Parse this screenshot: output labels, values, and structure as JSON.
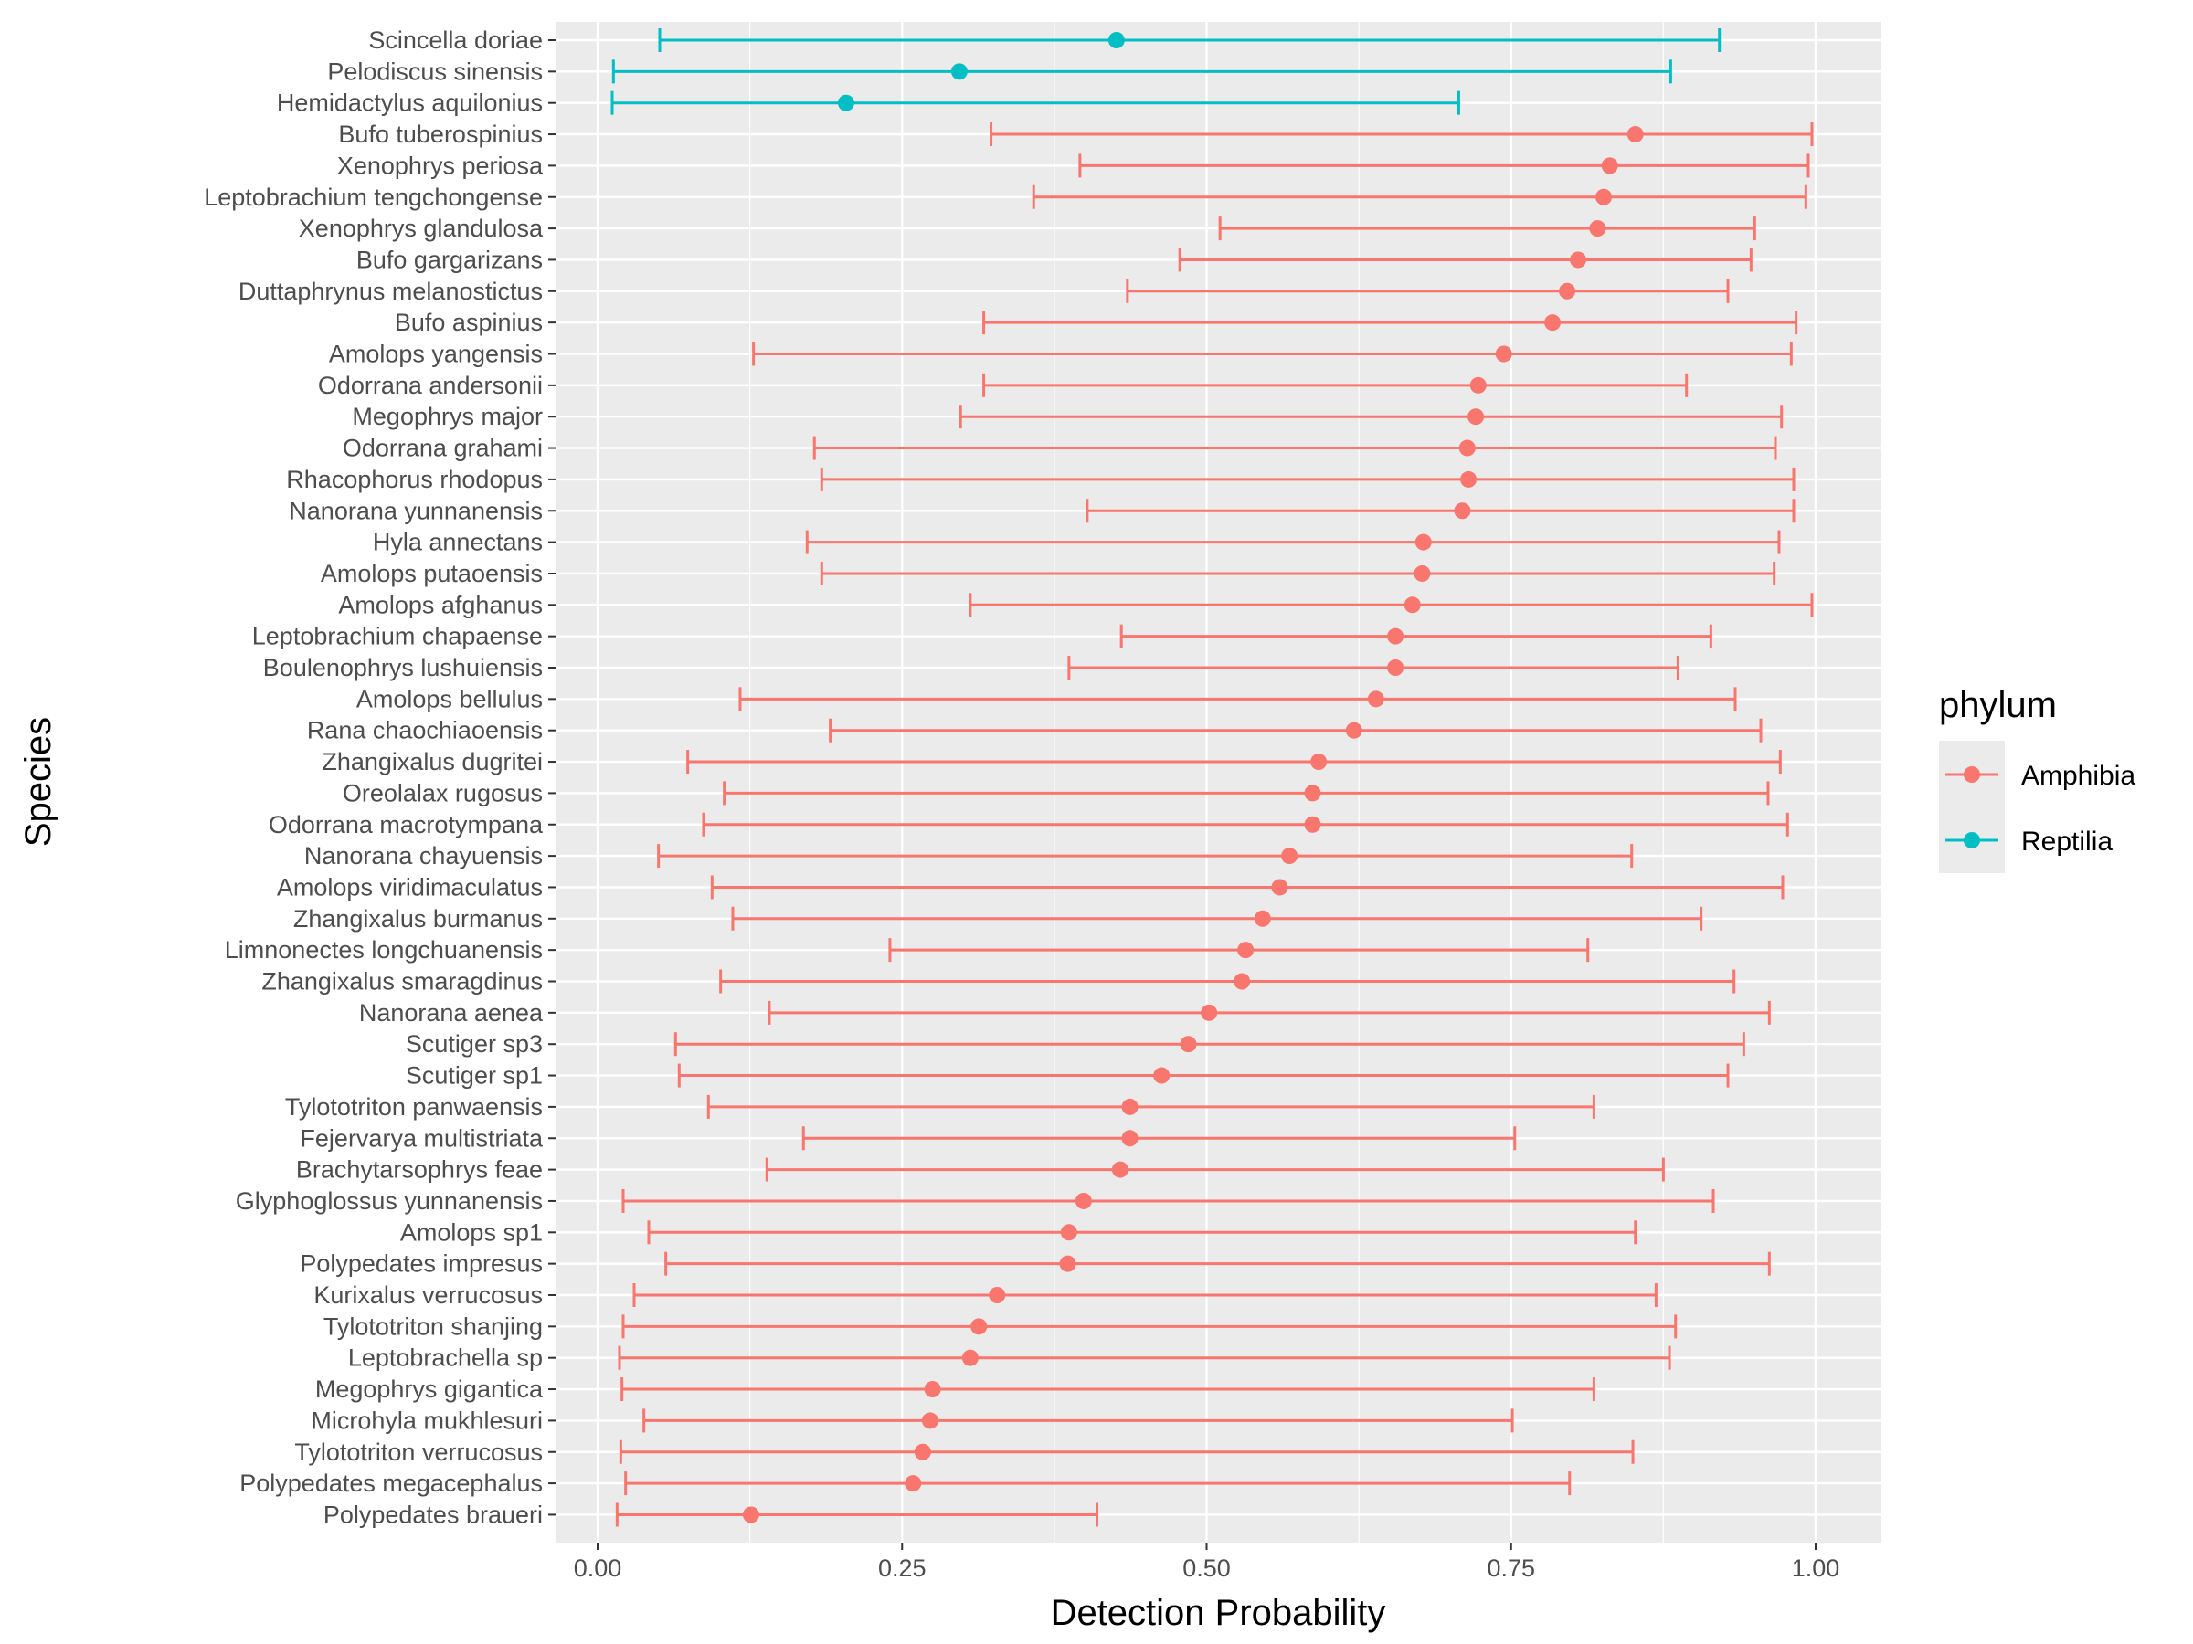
{
  "chart_data": {
    "type": "errorbar",
    "orientation": "horizontal",
    "xlabel": "Detection Probability",
    "ylabel": "Species",
    "xlim": [
      0,
      1
    ],
    "x_ticks": [
      "0.00",
      "0.25",
      "0.50",
      "0.75",
      "1.00"
    ],
    "grid": true,
    "legend": {
      "title": "phylum",
      "placement": "right",
      "entries": [
        {
          "label": "Amphibia",
          "color": "#F8766D"
        },
        {
          "label": "Reptilia",
          "color": "#00BFC4"
        }
      ]
    },
    "series": [
      {
        "species": "Scincella doriae",
        "phylum": "Reptilia",
        "estimate": 0.426,
        "lower": 0.051,
        "upper": 0.921
      },
      {
        "species": "Pelodiscus sinensis",
        "phylum": "Reptilia",
        "estimate": 0.297,
        "lower": 0.013,
        "upper": 0.881
      },
      {
        "species": "Hemidactylus aquilonius",
        "phylum": "Reptilia",
        "estimate": 0.204,
        "lower": 0.012,
        "upper": 0.707
      },
      {
        "species": "Bufo tuberospinius",
        "phylum": "Amphibia",
        "estimate": 0.852,
        "lower": 0.323,
        "upper": 0.997
      },
      {
        "species": "Xenophrys periosa",
        "phylum": "Amphibia",
        "estimate": 0.831,
        "lower": 0.396,
        "upper": 0.994
      },
      {
        "species": "Leptobrachium tengchongense",
        "phylum": "Amphibia",
        "estimate": 0.826,
        "lower": 0.358,
        "upper": 0.992
      },
      {
        "species": "Xenophrys glandulosa",
        "phylum": "Amphibia",
        "estimate": 0.821,
        "lower": 0.511,
        "upper": 0.95
      },
      {
        "species": "Bufo gargarizans",
        "phylum": "Amphibia",
        "estimate": 0.805,
        "lower": 0.478,
        "upper": 0.947
      },
      {
        "species": "Duttaphrynus melanostictus",
        "phylum": "Amphibia",
        "estimate": 0.796,
        "lower": 0.435,
        "upper": 0.928
      },
      {
        "species": "Bufo aspinius",
        "phylum": "Amphibia",
        "estimate": 0.784,
        "lower": 0.317,
        "upper": 0.984
      },
      {
        "species": "Amolops yangensis",
        "phylum": "Amphibia",
        "estimate": 0.744,
        "lower": 0.128,
        "upper": 0.98
      },
      {
        "species": "Odorrana andersonii",
        "phylum": "Amphibia",
        "estimate": 0.723,
        "lower": 0.317,
        "upper": 0.894
      },
      {
        "species": "Megophrys major",
        "phylum": "Amphibia",
        "estimate": 0.721,
        "lower": 0.298,
        "upper": 0.972
      },
      {
        "species": "Odorrana grahami",
        "phylum": "Amphibia",
        "estimate": 0.714,
        "lower": 0.178,
        "upper": 0.967
      },
      {
        "species": "Rhacophorus rhodopus",
        "phylum": "Amphibia",
        "estimate": 0.715,
        "lower": 0.184,
        "upper": 0.982
      },
      {
        "species": "Nanorana yunnanensis",
        "phylum": "Amphibia",
        "estimate": 0.71,
        "lower": 0.402,
        "upper": 0.982
      },
      {
        "species": "Hyla annectans",
        "phylum": "Amphibia",
        "estimate": 0.678,
        "lower": 0.172,
        "upper": 0.97
      },
      {
        "species": "Amolops putaoensis",
        "phylum": "Amphibia",
        "estimate": 0.677,
        "lower": 0.184,
        "upper": 0.966
      },
      {
        "species": "Amolops afghanus",
        "phylum": "Amphibia",
        "estimate": 0.669,
        "lower": 0.306,
        "upper": 0.997
      },
      {
        "species": "Leptobrachium chapaense",
        "phylum": "Amphibia",
        "estimate": 0.655,
        "lower": 0.43,
        "upper": 0.914
      },
      {
        "species": "Boulenophrys lushuiensis",
        "phylum": "Amphibia",
        "estimate": 0.655,
        "lower": 0.387,
        "upper": 0.887
      },
      {
        "species": "Amolops bellulus",
        "phylum": "Amphibia",
        "estimate": 0.639,
        "lower": 0.117,
        "upper": 0.934
      },
      {
        "species": "Rana chaochiaoensis",
        "phylum": "Amphibia",
        "estimate": 0.621,
        "lower": 0.191,
        "upper": 0.955
      },
      {
        "species": "Zhangixalus dugritei",
        "phylum": "Amphibia",
        "estimate": 0.592,
        "lower": 0.074,
        "upper": 0.971
      },
      {
        "species": "Oreolalax rugosus",
        "phylum": "Amphibia",
        "estimate": 0.587,
        "lower": 0.104,
        "upper": 0.961
      },
      {
        "species": "Odorrana macrotympana",
        "phylum": "Amphibia",
        "estimate": 0.587,
        "lower": 0.087,
        "upper": 0.977
      },
      {
        "species": "Nanorana chayuensis",
        "phylum": "Amphibia",
        "estimate": 0.568,
        "lower": 0.05,
        "upper": 0.849
      },
      {
        "species": "Amolops viridimaculatus",
        "phylum": "Amphibia",
        "estimate": 0.56,
        "lower": 0.094,
        "upper": 0.973
      },
      {
        "species": "Zhangixalus burmanus",
        "phylum": "Amphibia",
        "estimate": 0.546,
        "lower": 0.111,
        "upper": 0.906
      },
      {
        "species": "Limnonectes longchuanensis",
        "phylum": "Amphibia",
        "estimate": 0.532,
        "lower": 0.24,
        "upper": 0.813
      },
      {
        "species": "Zhangixalus smaragdinus",
        "phylum": "Amphibia",
        "estimate": 0.529,
        "lower": 0.101,
        "upper": 0.933
      },
      {
        "species": "Nanorana aenea",
        "phylum": "Amphibia",
        "estimate": 0.502,
        "lower": 0.141,
        "upper": 0.962
      },
      {
        "species": "Scutiger sp3",
        "phylum": "Amphibia",
        "estimate": 0.485,
        "lower": 0.064,
        "upper": 0.941
      },
      {
        "species": "Scutiger sp1",
        "phylum": "Amphibia",
        "estimate": 0.463,
        "lower": 0.067,
        "upper": 0.928
      },
      {
        "species": "Tylototriton panwaensis",
        "phylum": "Amphibia",
        "estimate": 0.437,
        "lower": 0.091,
        "upper": 0.818
      },
      {
        "species": "Fejervarya multistriata",
        "phylum": "Amphibia",
        "estimate": 0.437,
        "lower": 0.169,
        "upper": 0.753
      },
      {
        "species": "Brachytarsophrys feae",
        "phylum": "Amphibia",
        "estimate": 0.429,
        "lower": 0.139,
        "upper": 0.875
      },
      {
        "species": "Glyphoglossus yunnanensis",
        "phylum": "Amphibia",
        "estimate": 0.399,
        "lower": 0.021,
        "upper": 0.916
      },
      {
        "species": "Amolops sp1",
        "phylum": "Amphibia",
        "estimate": 0.387,
        "lower": 0.042,
        "upper": 0.852
      },
      {
        "species": "Polypedates impresus",
        "phylum": "Amphibia",
        "estimate": 0.386,
        "lower": 0.056,
        "upper": 0.962
      },
      {
        "species": "Kurixalus verrucosus",
        "phylum": "Amphibia",
        "estimate": 0.328,
        "lower": 0.03,
        "upper": 0.869
      },
      {
        "species": "Tylototriton shanjing",
        "phylum": "Amphibia",
        "estimate": 0.313,
        "lower": 0.021,
        "upper": 0.885
      },
      {
        "species": "Leptobrachella sp",
        "phylum": "Amphibia",
        "estimate": 0.306,
        "lower": 0.018,
        "upper": 0.88
      },
      {
        "species": "Megophrys gigantica",
        "phylum": "Amphibia",
        "estimate": 0.275,
        "lower": 0.02,
        "upper": 0.818
      },
      {
        "species": "Microhyla mukhlesuri",
        "phylum": "Amphibia",
        "estimate": 0.273,
        "lower": 0.038,
        "upper": 0.751
      },
      {
        "species": "Tylototriton verrucosus",
        "phylum": "Amphibia",
        "estimate": 0.267,
        "lower": 0.019,
        "upper": 0.85
      },
      {
        "species": "Polypedates megacephalus",
        "phylum": "Amphibia",
        "estimate": 0.259,
        "lower": 0.023,
        "upper": 0.798
      },
      {
        "species": "Polypedates braueri",
        "phylum": "Amphibia",
        "estimate": 0.126,
        "lower": 0.016,
        "upper": 0.41
      }
    ]
  }
}
